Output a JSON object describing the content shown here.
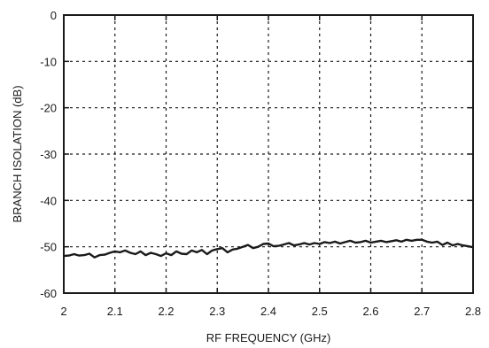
{
  "chart_data": {
    "type": "line",
    "title": "",
    "xlabel": "RF FREQUENCY (GHz)",
    "ylabel": "BRANCH ISOLATION (dB)",
    "xlim": [
      2,
      2.8
    ],
    "ylim": [
      -60,
      0
    ],
    "xticks": [
      2,
      2.1,
      2.2,
      2.3,
      2.4,
      2.5,
      2.6,
      2.7,
      2.8
    ],
    "xtick_labels": [
      "2",
      "2.1",
      "2.2",
      "2.3",
      "2.4",
      "2.5",
      "2.6",
      "2.7",
      "2.8"
    ],
    "yticks": [
      0,
      -10,
      -20,
      -30,
      -40,
      -50,
      -60
    ],
    "ytick_labels": [
      "0",
      "-10",
      "-20",
      "-30",
      "-40",
      "-50",
      "-60"
    ],
    "grid": true,
    "grid_style": "dotted",
    "line_color": "#1a1a1a",
    "series": [
      {
        "x": [
          2.0,
          2.01,
          2.02,
          2.03,
          2.04,
          2.05,
          2.06,
          2.07,
          2.08,
          2.09,
          2.1,
          2.11,
          2.12,
          2.13,
          2.14,
          2.15,
          2.16,
          2.17,
          2.18,
          2.19,
          2.2,
          2.21,
          2.22,
          2.23,
          2.24,
          2.25,
          2.26,
          2.27,
          2.28,
          2.29,
          2.3,
          2.31,
          2.32,
          2.33,
          2.34,
          2.35,
          2.36,
          2.37,
          2.38,
          2.39,
          2.4,
          2.41,
          2.42,
          2.43,
          2.44,
          2.45,
          2.46,
          2.47,
          2.48,
          2.49,
          2.5,
          2.51,
          2.52,
          2.53,
          2.54,
          2.55,
          2.56,
          2.57,
          2.58,
          2.59,
          2.6,
          2.61,
          2.62,
          2.63,
          2.64,
          2.65,
          2.66,
          2.67,
          2.68,
          2.69,
          2.7,
          2.71,
          2.72,
          2.73,
          2.74,
          2.75,
          2.76,
          2.77,
          2.78,
          2.79,
          2.8
        ],
        "y": [
          -52.0,
          -51.9,
          -51.6,
          -51.9,
          -51.8,
          -51.5,
          -52.3,
          -51.8,
          -51.7,
          -51.3,
          -51.0,
          -51.2,
          -50.8,
          -51.3,
          -51.6,
          -51.0,
          -51.8,
          -51.3,
          -51.6,
          -52.0,
          -51.4,
          -51.8,
          -51.0,
          -51.5,
          -51.6,
          -50.8,
          -51.2,
          -50.7,
          -51.6,
          -50.8,
          -50.5,
          -50.3,
          -51.2,
          -50.6,
          -50.4,
          -50.0,
          -49.6,
          -50.3,
          -50.0,
          -49.4,
          -49.3,
          -49.9,
          -49.8,
          -49.5,
          -49.2,
          -49.7,
          -49.5,
          -49.2,
          -49.5,
          -49.2,
          -49.4,
          -49.0,
          -49.2,
          -48.9,
          -49.3,
          -49.0,
          -48.7,
          -49.1,
          -49.0,
          -48.7,
          -49.1,
          -48.9,
          -48.7,
          -49.0,
          -48.8,
          -48.6,
          -48.9,
          -48.5,
          -48.7,
          -48.5,
          -48.5,
          -48.9,
          -49.1,
          -48.9,
          -49.6,
          -49.1,
          -49.7,
          -49.4,
          -49.7,
          -49.9,
          -50.1
        ]
      }
    ]
  }
}
